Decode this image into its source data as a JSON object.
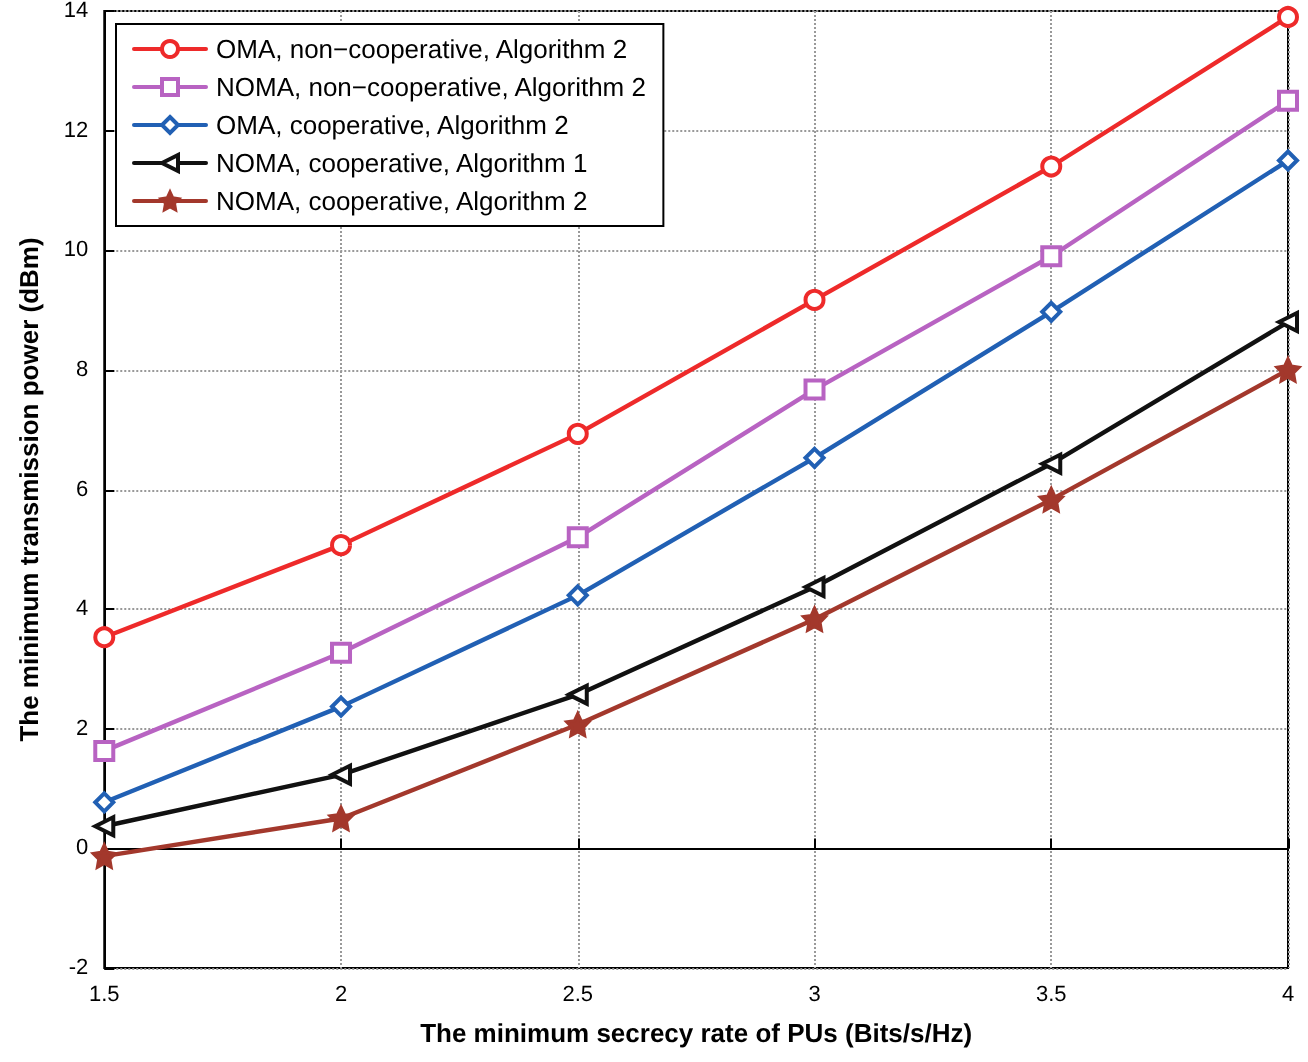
{
  "chart_data": {
    "type": "line",
    "xlabel": "The minimum secrecy rate of PUs (Bits/s/Hz)",
    "ylabel": "The minimum transmission power (dBm)",
    "x": [
      1.5,
      2,
      2.5,
      3,
      3.5,
      4
    ],
    "series": [
      {
        "name": "OMA, non−cooperative, Algorithm 2",
        "color": "#ee2a2a",
        "marker": "circle",
        "values": [
          3.53,
          5.07,
          6.93,
          9.17,
          11.4,
          13.9
        ]
      },
      {
        "name": "NOMA, non−cooperative, Algorithm 2",
        "color": "#b863c2",
        "marker": "square",
        "values": [
          1.63,
          3.27,
          5.2,
          7.67,
          9.9,
          12.5
        ]
      },
      {
        "name": "OMA, cooperative, Algorithm 2",
        "color": "#2160b4",
        "marker": "diamond",
        "values": [
          0.77,
          2.37,
          4.23,
          6.53,
          8.97,
          11.5
        ]
      },
      {
        "name": "NOMA, cooperative, Algorithm 1",
        "color": "#111111",
        "marker": "triangle",
        "values": [
          0.37,
          1.23,
          2.57,
          4.37,
          6.43,
          8.8
        ]
      },
      {
        "name": "NOMA, cooperative, Algorithm 2",
        "color": "#a3382c",
        "marker": "star",
        "values": [
          -0.13,
          0.5,
          2.07,
          3.83,
          5.83,
          8.0
        ]
      }
    ],
    "xlim": [
      1.5,
      4
    ],
    "xticks": [
      1.5,
      2,
      2.5,
      3,
      3.5,
      4
    ],
    "ylim": [
      -2,
      14
    ],
    "yticks": [
      -2,
      0,
      2,
      4,
      6,
      8,
      10,
      12,
      14
    ],
    "grid": true,
    "legend": "top left",
    "line_style": "solid"
  }
}
